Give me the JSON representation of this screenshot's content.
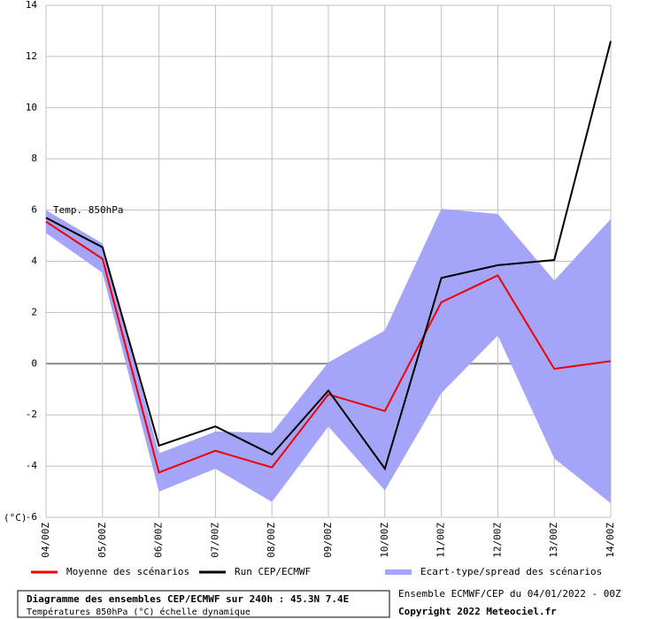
{
  "chart_data": {
    "type": "line",
    "categories": [
      "04/00Z",
      "05/00Z",
      "06/00Z",
      "07/00Z",
      "08/00Z",
      "09/00Z",
      "10/00Z",
      "11/00Z",
      "12/00Z",
      "13/00Z",
      "14/00Z"
    ],
    "ylim": [
      -6,
      14
    ],
    "yticks": [
      -6,
      -4,
      -2,
      0,
      2,
      4,
      6,
      8,
      10,
      12,
      14
    ],
    "y_unit": "(°C)",
    "grid": true,
    "annotation": "Temp. 850hPa",
    "spread": {
      "name": "Ecart-type/spread des scénarios",
      "color": "#a4a4f8",
      "upper": [
        6.0,
        4.7,
        -3.5,
        -2.65,
        -2.7,
        0.05,
        1.3,
        6.05,
        5.85,
        3.25,
        5.65
      ],
      "lower": [
        5.1,
        3.55,
        -5.0,
        -4.1,
        -5.4,
        -2.45,
        -4.95,
        -1.15,
        1.1,
        -3.7,
        -5.45
      ]
    },
    "series": [
      {
        "name": "Moyenne des scénarios",
        "color": "#ee0000",
        "values": [
          5.55,
          4.1,
          -4.25,
          -3.4,
          -4.05,
          -1.2,
          -1.85,
          2.4,
          3.45,
          -0.2,
          0.1
        ]
      },
      {
        "name": "Run CEP/ECMWF",
        "color": "#000000",
        "values": [
          5.7,
          4.55,
          -3.2,
          -2.45,
          -3.55,
          -1.05,
          -4.1,
          3.35,
          3.85,
          4.05,
          12.6
        ]
      }
    ],
    "footer": {
      "title": "Diagramme des ensembles CEP/ECMWF sur 240h : 45.3N 7.4E",
      "subtitle": "Températures 850hPa (°C) échelle dynamique",
      "run": "Ensemble ECMWF/CEP du 04/01/2022 - 00Z",
      "copyright": "Copyright 2022 Meteociel.fr"
    }
  }
}
